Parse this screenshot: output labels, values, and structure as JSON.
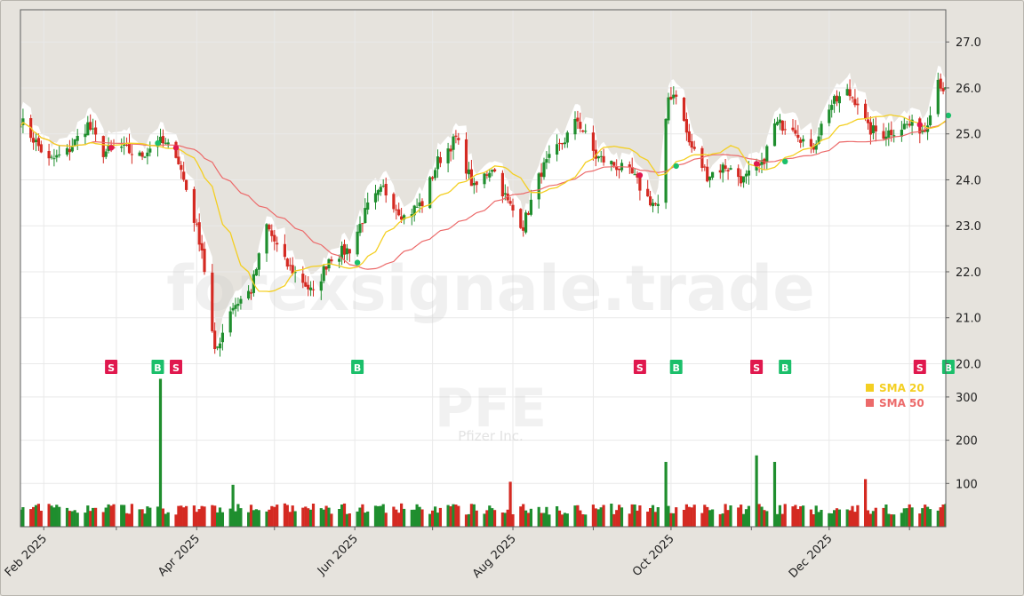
{
  "watermark": {
    "site": "forexsignale.trade",
    "ticker": "PFE",
    "company": "Pfizer Inc."
  },
  "colors": {
    "up": "#1f8e2e",
    "down": "#d42a22",
    "sma20": "#f4cf22",
    "sma50": "#ec6a6a",
    "signal_buy": "#1bbf6a",
    "signal_sell": "#e0184e",
    "plot_bg": "#ffffff",
    "shade": "#e6e3dd"
  },
  "chart_data": {
    "type": "candlestick",
    "price_ticks": [
      "20.0",
      "21.0",
      "22.0",
      "23.0",
      "24.0",
      "25.0",
      "26.0",
      "27.0"
    ],
    "price_range": [
      19.7,
      27.7
    ],
    "volume_ticks": [
      "100",
      "200",
      "300"
    ],
    "volume_range": [
      0,
      345
    ],
    "x_start": "2025-01-23",
    "x_end": "2026-01-15",
    "x_tick_labels": [
      "Feb 2025",
      "Apr 2025",
      "Jun 2025",
      "Aug 2025",
      "Oct 2025",
      "Dec 2025"
    ],
    "x_tick_dates": [
      "2025-02-01",
      "2025-04-01",
      "2025-06-01",
      "2025-08-01",
      "2025-10-01",
      "2025-12-01"
    ],
    "minor_tick_dates": [
      "2025-03-01",
      "2025-05-01",
      "2025-07-01",
      "2025-09-01",
      "2025-11-01",
      "2026-01-01"
    ],
    "close_anchors": [
      [
        "2025-01-23",
        25.3
      ],
      [
        "2025-02-03",
        24.4
      ],
      [
        "2025-02-10",
        24.6
      ],
      [
        "2025-02-18",
        25.2
      ],
      [
        "2025-02-24",
        24.6
      ],
      [
        "2025-03-03",
        24.7
      ],
      [
        "2025-03-10",
        24.5
      ],
      [
        "2025-03-17",
        24.85
      ],
      [
        "2025-03-24",
        24.6
      ],
      [
        "2025-03-28",
        23.8
      ],
      [
        "2025-04-03",
        22.5
      ],
      [
        "2025-04-08",
        20.2
      ],
      [
        "2025-04-14",
        21.2
      ],
      [
        "2025-04-22",
        21.6
      ],
      [
        "2025-04-28",
        23.0
      ],
      [
        "2025-05-05",
        22.2
      ],
      [
        "2025-05-12",
        21.8
      ],
      [
        "2025-05-16",
        21.5
      ],
      [
        "2025-05-22",
        22.3
      ],
      [
        "2025-05-30",
        22.5
      ],
      [
        "2025-06-06",
        23.4
      ],
      [
        "2025-06-12",
        23.8
      ],
      [
        "2025-06-20",
        23.2
      ],
      [
        "2025-06-27",
        23.5
      ],
      [
        "2025-07-03",
        24.4
      ],
      [
        "2025-07-10",
        24.9
      ],
      [
        "2025-07-17",
        23.8
      ],
      [
        "2025-07-24",
        24.3
      ],
      [
        "2025-07-30",
        23.5
      ],
      [
        "2025-08-05",
        23.0
      ],
      [
        "2025-08-12",
        24.2
      ],
      [
        "2025-08-20",
        24.8
      ],
      [
        "2025-08-26",
        25.3
      ],
      [
        "2025-09-02",
        24.5
      ],
      [
        "2025-09-10",
        24.3
      ],
      [
        "2025-09-16",
        24.1
      ],
      [
        "2025-09-22",
        23.6
      ],
      [
        "2025-09-26",
        23.4
      ],
      [
        "2025-09-30",
        25.8
      ],
      [
        "2025-10-03",
        25.9
      ],
      [
        "2025-10-08",
        24.8
      ],
      [
        "2025-10-15",
        24.1
      ],
      [
        "2025-10-22",
        24.3
      ],
      [
        "2025-10-29",
        24.0
      ],
      [
        "2025-11-05",
        24.3
      ],
      [
        "2025-11-10",
        25.2
      ],
      [
        "2025-11-17",
        25.2
      ],
      [
        "2025-11-24",
        24.6
      ],
      [
        "2025-12-01",
        25.6
      ],
      [
        "2025-12-08",
        25.9
      ],
      [
        "2025-12-12",
        25.7
      ],
      [
        "2025-12-16",
        25.1
      ],
      [
        "2025-12-22",
        25.0
      ],
      [
        "2025-12-31",
        25.2
      ],
      [
        "2026-01-07",
        25.1
      ],
      [
        "2026-01-12",
        26.2
      ],
      [
        "2026-01-15",
        25.9
      ]
    ],
    "volume_spikes": [
      [
        "2025-03-19",
        342
      ],
      [
        "2025-04-16",
        97
      ],
      [
        "2025-08-01",
        104
      ],
      [
        "2025-09-29",
        160
      ],
      [
        "2025-09-30",
        150
      ],
      [
        "2025-11-03",
        157
      ],
      [
        "2025-11-04",
        165
      ],
      [
        "2025-11-10",
        150
      ],
      [
        "2025-12-16",
        110
      ]
    ],
    "series": [
      {
        "name": "SMA 20",
        "color": "#f4cf22"
      },
      {
        "name": "SMA 50",
        "color": "#ec6a6a"
      }
    ],
    "signals": [
      {
        "label": "S",
        "date": "2025-02-27",
        "price": 24.7
      },
      {
        "label": "B",
        "date": "2025-03-17",
        "price": 24.8
      },
      {
        "label": "S",
        "date": "2025-03-24",
        "price": 24.7
      },
      {
        "label": "B",
        "date": "2025-06-02",
        "price": 22.2
      },
      {
        "label": "S",
        "date": "2025-09-19",
        "price": 24.1
      },
      {
        "label": "B",
        "date": "2025-10-03",
        "price": 24.3
      },
      {
        "label": "S",
        "date": "2025-11-03",
        "price": 24.35
      },
      {
        "label": "B",
        "date": "2025-11-14",
        "price": 24.4
      },
      {
        "label": "S",
        "date": "2026-01-05",
        "price": 25.2
      },
      {
        "label": "B",
        "date": "2026-01-16",
        "price": 25.4
      }
    ],
    "legend_position": "bottom-right of price panel",
    "grid": true
  }
}
